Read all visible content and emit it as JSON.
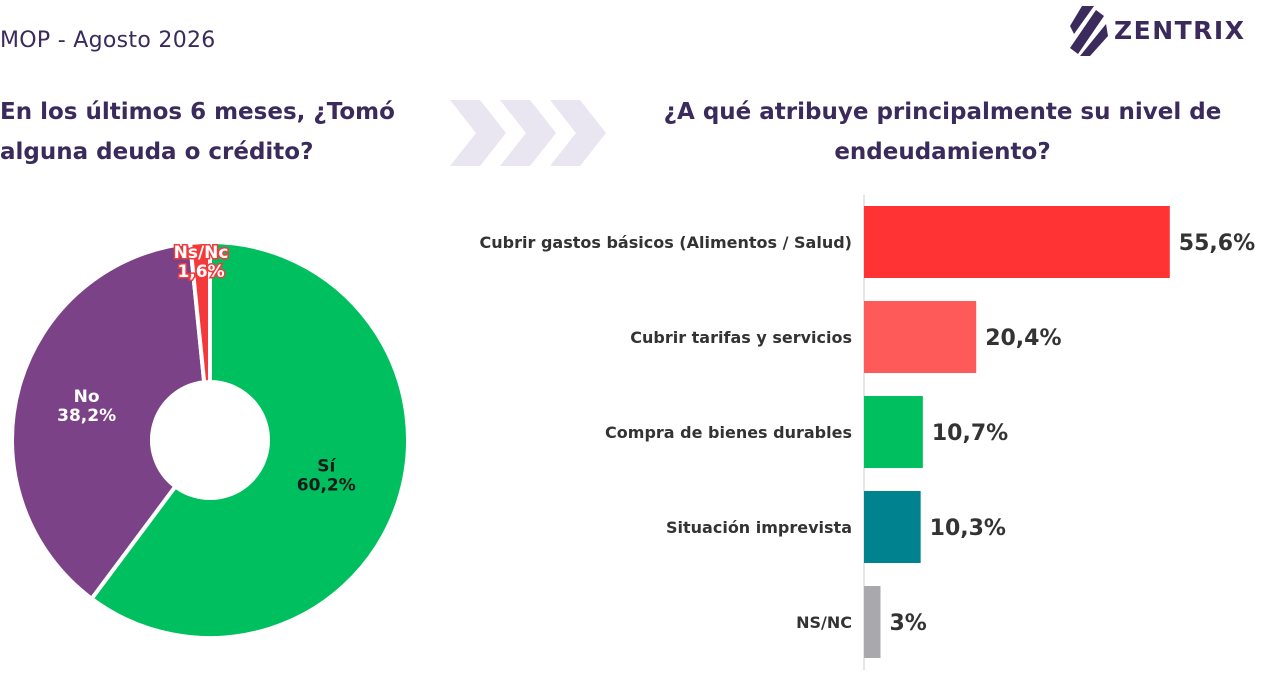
{
  "header": {
    "subtitle": "MOP - Agosto 2026",
    "brand": "ZENTRIX",
    "brand_color": "#3b2a5c",
    "logo_icon": "slashed-stripes-logo"
  },
  "left_question": {
    "line1": "En los últimos 6 meses, ¿Tomó",
    "line2": "alguna deuda o crédito?"
  },
  "right_question": {
    "line1": "¿A qué atribuye principalmente su nivel de",
    "line2": "endeudamiento?"
  },
  "separator_icon": "chevron-arrows-icon",
  "chart_data": [
    {
      "type": "pie",
      "donut": true,
      "slices": [
        {
          "name": "Sí",
          "label": "60,2%",
          "value": 60.2,
          "color": "#00bf5f"
        },
        {
          "name": "No",
          "label": "38,2%",
          "value": 38.2,
          "color": "#7b4287"
        },
        {
          "name": "Ns/Nc",
          "label": "1,6%",
          "value": 1.6,
          "color": "#f5393b"
        }
      ]
    },
    {
      "type": "bar",
      "orientation": "horizontal",
      "categories": [
        "Cubrir gastos básicos (Alimentos / Salud)",
        "Cubrir tarifas y servicios",
        "Compra de bienes durables",
        "Situación imprevista",
        "NS/NC"
      ],
      "values": [
        55.6,
        20.4,
        10.7,
        10.3,
        3
      ],
      "value_labels": [
        "55,6%",
        "20,4%",
        "10,7%",
        "10,3%",
        "3%"
      ],
      "colors": [
        "#ff3333",
        "#ff5a5a",
        "#00bf5f",
        "#00838f",
        "#a9a9ad"
      ]
    }
  ]
}
